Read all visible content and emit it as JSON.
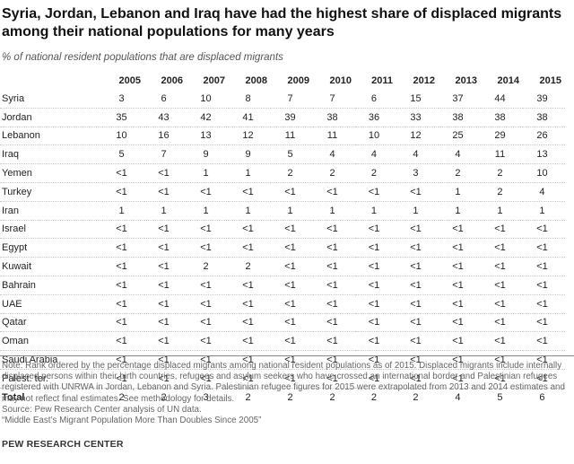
{
  "header": {
    "title": "Syria, Jordan, Lebanon and Iraq have had the highest share of displaced migrants among their national populations for many years",
    "subtitle": "% of national resident populations that are displaced migrants"
  },
  "chart_data": {
    "type": "table",
    "title": "Syria, Jordan, Lebanon and Iraq have had the highest share of displaced migrants among their national populations for many years",
    "subtitle": "% of national resident populations that are displaced migrants",
    "columns": [
      "2005",
      "2006",
      "2007",
      "2008",
      "2009",
      "2010",
      "2011",
      "2012",
      "2013",
      "2014",
      "2015"
    ],
    "rows": [
      {
        "label": "Syria",
        "values": [
          "3",
          "6",
          "10",
          "8",
          "7",
          "7",
          "6",
          "15",
          "37",
          "44",
          "39"
        ]
      },
      {
        "label": "Jordan",
        "values": [
          "35",
          "43",
          "42",
          "41",
          "39",
          "38",
          "36",
          "33",
          "38",
          "38",
          "38"
        ]
      },
      {
        "label": "Lebanon",
        "values": [
          "10",
          "16",
          "13",
          "12",
          "11",
          "11",
          "10",
          "12",
          "25",
          "29",
          "26"
        ]
      },
      {
        "label": "Iraq",
        "values": [
          "5",
          "7",
          "9",
          "9",
          "5",
          "4",
          "4",
          "4",
          "4",
          "11",
          "13"
        ]
      },
      {
        "label": "Yemen",
        "values": [
          "<1",
          "<1",
          "1",
          "1",
          "2",
          "2",
          "2",
          "3",
          "2",
          "2",
          "10"
        ]
      },
      {
        "label": "Turkey",
        "values": [
          "<1",
          "<1",
          "<1",
          "<1",
          "<1",
          "<1",
          "<1",
          "<1",
          "1",
          "2",
          "4"
        ]
      },
      {
        "label": "Iran",
        "values": [
          "1",
          "1",
          "1",
          "1",
          "1",
          "1",
          "1",
          "1",
          "1",
          "1",
          "1"
        ]
      },
      {
        "label": "Israel",
        "values": [
          "<1",
          "<1",
          "<1",
          "<1",
          "<1",
          "<1",
          "<1",
          "<1",
          "<1",
          "<1",
          "<1"
        ]
      },
      {
        "label": "Egypt",
        "values": [
          "<1",
          "<1",
          "<1",
          "<1",
          "<1",
          "<1",
          "<1",
          "<1",
          "<1",
          "<1",
          "<1"
        ]
      },
      {
        "label": "Kuwait",
        "values": [
          "<1",
          "<1",
          "2",
          "2",
          "<1",
          "<1",
          "<1",
          "<1",
          "<1",
          "<1",
          "<1"
        ]
      },
      {
        "label": "Bahrain",
        "values": [
          "<1",
          "<1",
          "<1",
          "<1",
          "<1",
          "<1",
          "<1",
          "<1",
          "<1",
          "<1",
          "<1"
        ]
      },
      {
        "label": "UAE",
        "values": [
          "<1",
          "<1",
          "<1",
          "<1",
          "<1",
          "<1",
          "<1",
          "<1",
          "<1",
          "<1",
          "<1"
        ]
      },
      {
        "label": "Qatar",
        "values": [
          "<1",
          "<1",
          "<1",
          "<1",
          "<1",
          "<1",
          "<1",
          "<1",
          "<1",
          "<1",
          "<1"
        ]
      },
      {
        "label": "Oman",
        "values": [
          "<1",
          "<1",
          "<1",
          "<1",
          "<1",
          "<1",
          "<1",
          "<1",
          "<1",
          "<1",
          "<1"
        ]
      },
      {
        "label": "Saudi Arabia",
        "values": [
          "<1",
          "<1",
          "<1",
          "<1",
          "<1",
          "<1",
          "<1",
          "<1",
          "<1",
          "<1",
          "<1"
        ]
      },
      {
        "label": "Palest. ter.",
        "values": [
          "<1",
          "<1",
          "<1",
          "<1",
          "<1",
          "<1",
          "<1",
          "<1",
          "<1",
          "<1",
          "<1"
        ]
      },
      {
        "label": "Total",
        "values": [
          "2",
          "2",
          "3",
          "2",
          "2",
          "2",
          "2",
          "2",
          "4",
          "5",
          "6"
        ],
        "is_total": true
      }
    ]
  },
  "footer": {
    "note": "Note: Rank ordered by the percentage displaced migrants among national resident populations as of 2015. Displaced migrants include internally displaced persons within their birth countries, refugees and asylum seekers who have crossed an international border and Palestinian refugees registered with UNRWA in Jordan, Lebanon and Syria. Palestinian refugee figures for 2015 were extrapolated from 2013 and 2014 estimates and may not reflect final estimates. See methodology for details.",
    "source": "Source: Pew Research Center analysis of UN data.",
    "report": "“Middle East’s Migrant Population More Than Doubles Since 2005”",
    "brand": "PEW RESEARCH CENTER"
  }
}
